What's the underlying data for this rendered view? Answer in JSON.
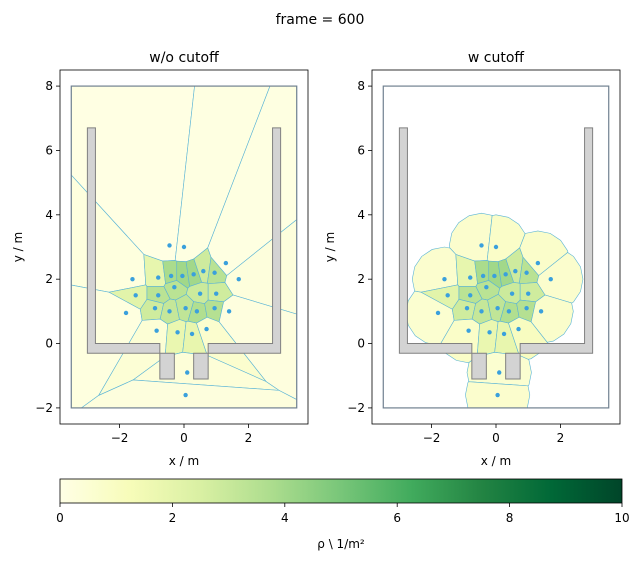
{
  "figure": {
    "suptitle": "frame = 600"
  },
  "chart_data": [
    {
      "type": "heatmap",
      "title": "w/o cutoff",
      "xlabel": "x / m",
      "ylabel": "y / m",
      "xlim": [
        -3.85,
        3.85
      ],
      "ylim": [
        -2.5,
        8.5
      ],
      "xticks": [
        -2,
        0,
        2
      ],
      "yticks": [
        -2,
        0,
        2,
        4,
        6,
        8
      ],
      "xtick_labels": [
        "−2",
        "0",
        "2"
      ],
      "ytick_labels": [
        "−2",
        "0",
        "2",
        "4",
        "6",
        "8"
      ],
      "grid": false,
      "cutoff": false,
      "walkable_area": {
        "xmin": -3.5,
        "xmax": 3.5,
        "ymin": -2,
        "ymax": 8
      },
      "obstacles": [
        [
          [
            -3.0,
            6.7
          ],
          [
            -2.75,
            6.7
          ],
          [
            -2.75,
            0.0
          ],
          [
            -0.75,
            0.0
          ],
          [
            -0.75,
            -1.1
          ],
          [
            -0.3,
            -1.1
          ],
          [
            -0.3,
            -0.3
          ],
          [
            -3.0,
            -0.3
          ]
        ],
        [
          [
            3.0,
            6.7
          ],
          [
            2.75,
            6.7
          ],
          [
            2.75,
            0.0
          ],
          [
            0.75,
            0.0
          ],
          [
            0.75,
            -1.1
          ],
          [
            0.3,
            -1.1
          ],
          [
            0.3,
            -0.3
          ],
          [
            3.0,
            -0.3
          ]
        ]
      ],
      "agents": [
        [
          -0.45,
          3.05
        ],
        [
          0.0,
          3.0
        ],
        [
          -1.6,
          2.0
        ],
        [
          -0.8,
          2.05
        ],
        [
          -0.4,
          2.1
        ],
        [
          -0.05,
          2.1
        ],
        [
          0.3,
          2.15
        ],
        [
          0.6,
          2.25
        ],
        [
          0.95,
          2.2
        ],
        [
          1.3,
          2.5
        ],
        [
          1.7,
          2.0
        ],
        [
          -1.5,
          1.5
        ],
        [
          -0.8,
          1.5
        ],
        [
          -0.3,
          1.75
        ],
        [
          0.5,
          1.55
        ],
        [
          1.0,
          1.55
        ],
        [
          -1.8,
          0.95
        ],
        [
          -0.9,
          1.1
        ],
        [
          -0.45,
          1.0
        ],
        [
          0.05,
          1.1
        ],
        [
          0.4,
          1.0
        ],
        [
          0.95,
          1.1
        ],
        [
          1.4,
          1.0
        ],
        [
          -0.85,
          0.4
        ],
        [
          -0.2,
          0.35
        ],
        [
          0.25,
          0.3
        ],
        [
          0.7,
          0.45
        ],
        [
          0.1,
          -0.9
        ],
        [
          0.05,
          -1.6
        ]
      ],
      "colorbar": {
        "label": "ρ \\ 1/m²",
        "range": [
          0,
          10
        ],
        "ticks": [
          0,
          2,
          4,
          6,
          8,
          10
        ],
        "colormap": "YlGn",
        "stops": [
          "#ffffe5",
          "#f7fcb9",
          "#d9f0a3",
          "#addd8e",
          "#78c679",
          "#41ab5d",
          "#238443",
          "#006837",
          "#004529"
        ]
      }
    },
    {
      "type": "heatmap",
      "title": "w cutoff",
      "xlabel": "x / m",
      "ylabel": "y / m",
      "xlim": [
        -3.85,
        3.85
      ],
      "ylim": [
        -2.5,
        8.5
      ],
      "xticks": [
        -2,
        0,
        2
      ],
      "yticks": [
        -2,
        0,
        2,
        4,
        6,
        8
      ],
      "xtick_labels": [
        "−2",
        "0",
        "2"
      ],
      "ytick_labels": [
        "−2",
        "0",
        "2",
        "4",
        "6",
        "8"
      ],
      "grid": false,
      "cutoff": true,
      "walkable_area": {
        "xmin": -3.5,
        "xmax": 3.5,
        "ymin": -2,
        "ymax": 8
      },
      "obstacles": [
        [
          [
            -3.0,
            6.7
          ],
          [
            -2.75,
            6.7
          ],
          [
            -2.75,
            0.0
          ],
          [
            -0.75,
            0.0
          ],
          [
            -0.75,
            -1.1
          ],
          [
            -0.3,
            -1.1
          ],
          [
            -0.3,
            -0.3
          ],
          [
            -3.0,
            -0.3
          ]
        ],
        [
          [
            3.0,
            6.7
          ],
          [
            2.75,
            6.7
          ],
          [
            2.75,
            0.0
          ],
          [
            0.75,
            0.0
          ],
          [
            0.75,
            -1.1
          ],
          [
            0.3,
            -1.1
          ],
          [
            0.3,
            -0.3
          ],
          [
            3.0,
            -0.3
          ]
        ]
      ],
      "agents": [
        [
          -0.45,
          3.05
        ],
        [
          0.0,
          3.0
        ],
        [
          -1.6,
          2.0
        ],
        [
          -0.8,
          2.05
        ],
        [
          -0.4,
          2.1
        ],
        [
          -0.05,
          2.1
        ],
        [
          0.3,
          2.15
        ],
        [
          0.6,
          2.25
        ],
        [
          0.95,
          2.2
        ],
        [
          1.3,
          2.5
        ],
        [
          1.7,
          2.0
        ],
        [
          -1.5,
          1.5
        ],
        [
          -0.8,
          1.5
        ],
        [
          -0.3,
          1.75
        ],
        [
          0.5,
          1.55
        ],
        [
          1.0,
          1.55
        ],
        [
          -1.8,
          0.95
        ],
        [
          -0.9,
          1.1
        ],
        [
          -0.45,
          1.0
        ],
        [
          0.05,
          1.1
        ],
        [
          0.4,
          1.0
        ],
        [
          0.95,
          1.1
        ],
        [
          1.4,
          1.0
        ],
        [
          -0.85,
          0.4
        ],
        [
          -0.2,
          0.35
        ],
        [
          0.25,
          0.3
        ],
        [
          0.7,
          0.45
        ],
        [
          0.1,
          -0.9
        ],
        [
          0.05,
          -1.6
        ]
      ],
      "cutoff_radius": 1.0,
      "colorbar": {
        "label": "ρ \\ 1/m²",
        "range": [
          0,
          10
        ],
        "ticks": [
          0,
          2,
          4,
          6,
          8,
          10
        ],
        "colormap": "YlGn",
        "stops": [
          "#ffffe5",
          "#f7fcb9",
          "#d9f0a3",
          "#addd8e",
          "#78c679",
          "#41ab5d",
          "#238443",
          "#006837",
          "#004529"
        ]
      }
    }
  ],
  "colorbar": {
    "label": "ρ \\ 1/m²",
    "range": [
      0,
      10
    ],
    "ticks": [
      0,
      2,
      4,
      6,
      8,
      10
    ],
    "colormap": "YlGn",
    "stops": [
      "#ffffe5",
      "#f7fcb9",
      "#d9f0a3",
      "#addd8e",
      "#78c679",
      "#41ab5d",
      "#238443",
      "#006837",
      "#004529"
    ]
  },
  "colors": {
    "voronoi_edge": "#5ab4d6",
    "agent": "#3aa0dc",
    "obstacle_fill": "#d3d3d3",
    "obstacle_edge": "#808080",
    "walkable_edge": "#708090"
  }
}
